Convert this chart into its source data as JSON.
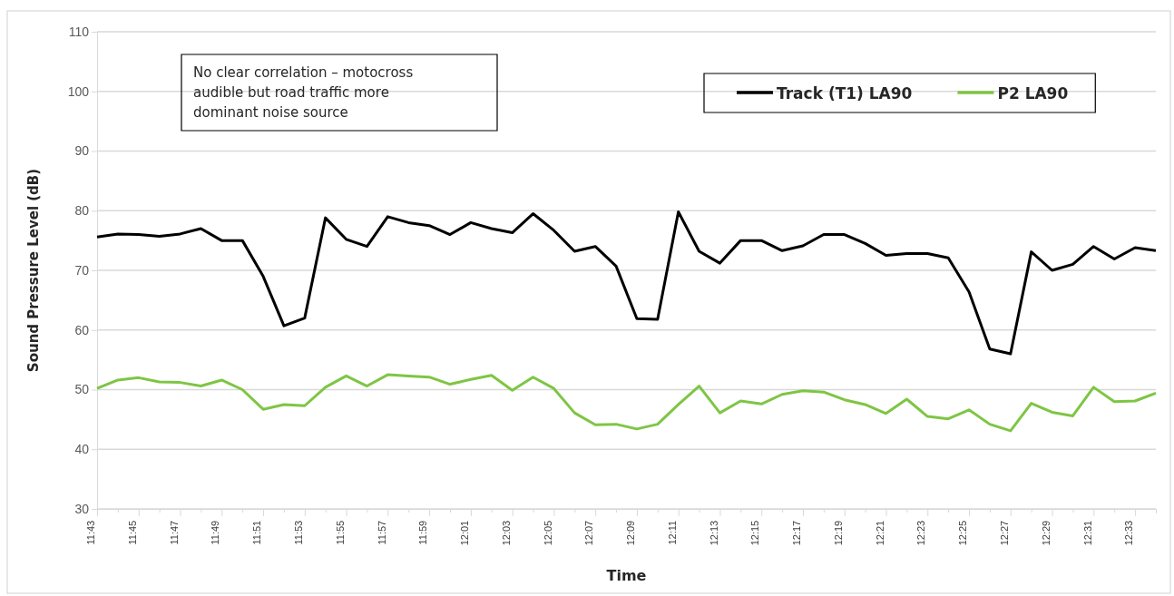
{
  "chart_data": {
    "type": "line",
    "xlabel": "Time",
    "ylabel": "Sound Pressure Level (dB)",
    "categories": [
      "11:43",
      null,
      "11:45",
      null,
      "11:47",
      null,
      "11:49",
      null,
      "11:51",
      null,
      "11:53",
      null,
      "11:55",
      null,
      "11:57",
      null,
      "11:59",
      null,
      "12:01",
      null,
      "12:03",
      null,
      "12:05",
      null,
      "12:07",
      null,
      "12:09",
      null,
      "12:11",
      null,
      "12:13",
      null,
      "12:15",
      null,
      "12:17",
      null,
      "12:19",
      null,
      "12:21",
      null,
      "12:23",
      null,
      "12:25",
      null,
      "12:27",
      null,
      "12:29",
      null,
      "12:31",
      null,
      "12:33",
      null
    ],
    "series": [
      {
        "name": "Track (T1) LA90",
        "color": "#000000",
        "values": [
          75.6,
          76.1,
          76.0,
          75.7,
          76.1,
          77.0,
          75.0,
          75.0,
          69.0,
          60.7,
          62.0,
          78.8,
          75.2,
          74.0,
          79.0,
          78.0,
          77.5,
          76.0,
          78.0,
          77.0,
          76.3,
          79.5,
          76.7,
          73.2,
          74.0,
          70.7,
          61.9,
          61.8,
          79.8,
          73.2,
          71.2,
          75.0,
          75.0,
          73.3,
          74.1,
          76.0,
          76.0,
          74.5,
          72.5,
          72.8,
          72.8,
          72.1,
          66.4,
          56.8,
          56.0,
          73.1,
          70.0,
          71.0,
          74.0,
          71.9,
          73.8,
          73.3
        ]
      },
      {
        "name": "P2 LA90",
        "color": "#7ec544",
        "values": [
          50.2,
          51.6,
          52.0,
          51.3,
          51.2,
          50.6,
          51.6,
          50.0,
          46.7,
          47.5,
          47.3,
          50.4,
          52.3,
          50.6,
          52.5,
          52.3,
          52.1,
          50.9,
          51.7,
          52.4,
          49.9,
          52.1,
          50.2,
          46.1,
          44.1,
          44.2,
          43.4,
          44.2,
          47.5,
          50.6,
          46.1,
          48.1,
          47.6,
          49.2,
          49.8,
          49.6,
          48.3,
          47.5,
          46.0,
          48.4,
          45.5,
          45.1,
          46.6,
          44.2,
          43.1,
          47.7,
          46.2,
          45.6,
          50.4,
          48.0,
          48.1,
          49.4
        ]
      }
    ],
    "ylim": [
      30,
      110
    ],
    "yticks": [
      30,
      40,
      50,
      60,
      70,
      80,
      90,
      100,
      110
    ],
    "grid": "y",
    "legend": "top right",
    "marker": "none",
    "line_style": "solid",
    "annotations": [
      "No clear correlation – motocross audible but road traffic more dominant noise source"
    ]
  }
}
